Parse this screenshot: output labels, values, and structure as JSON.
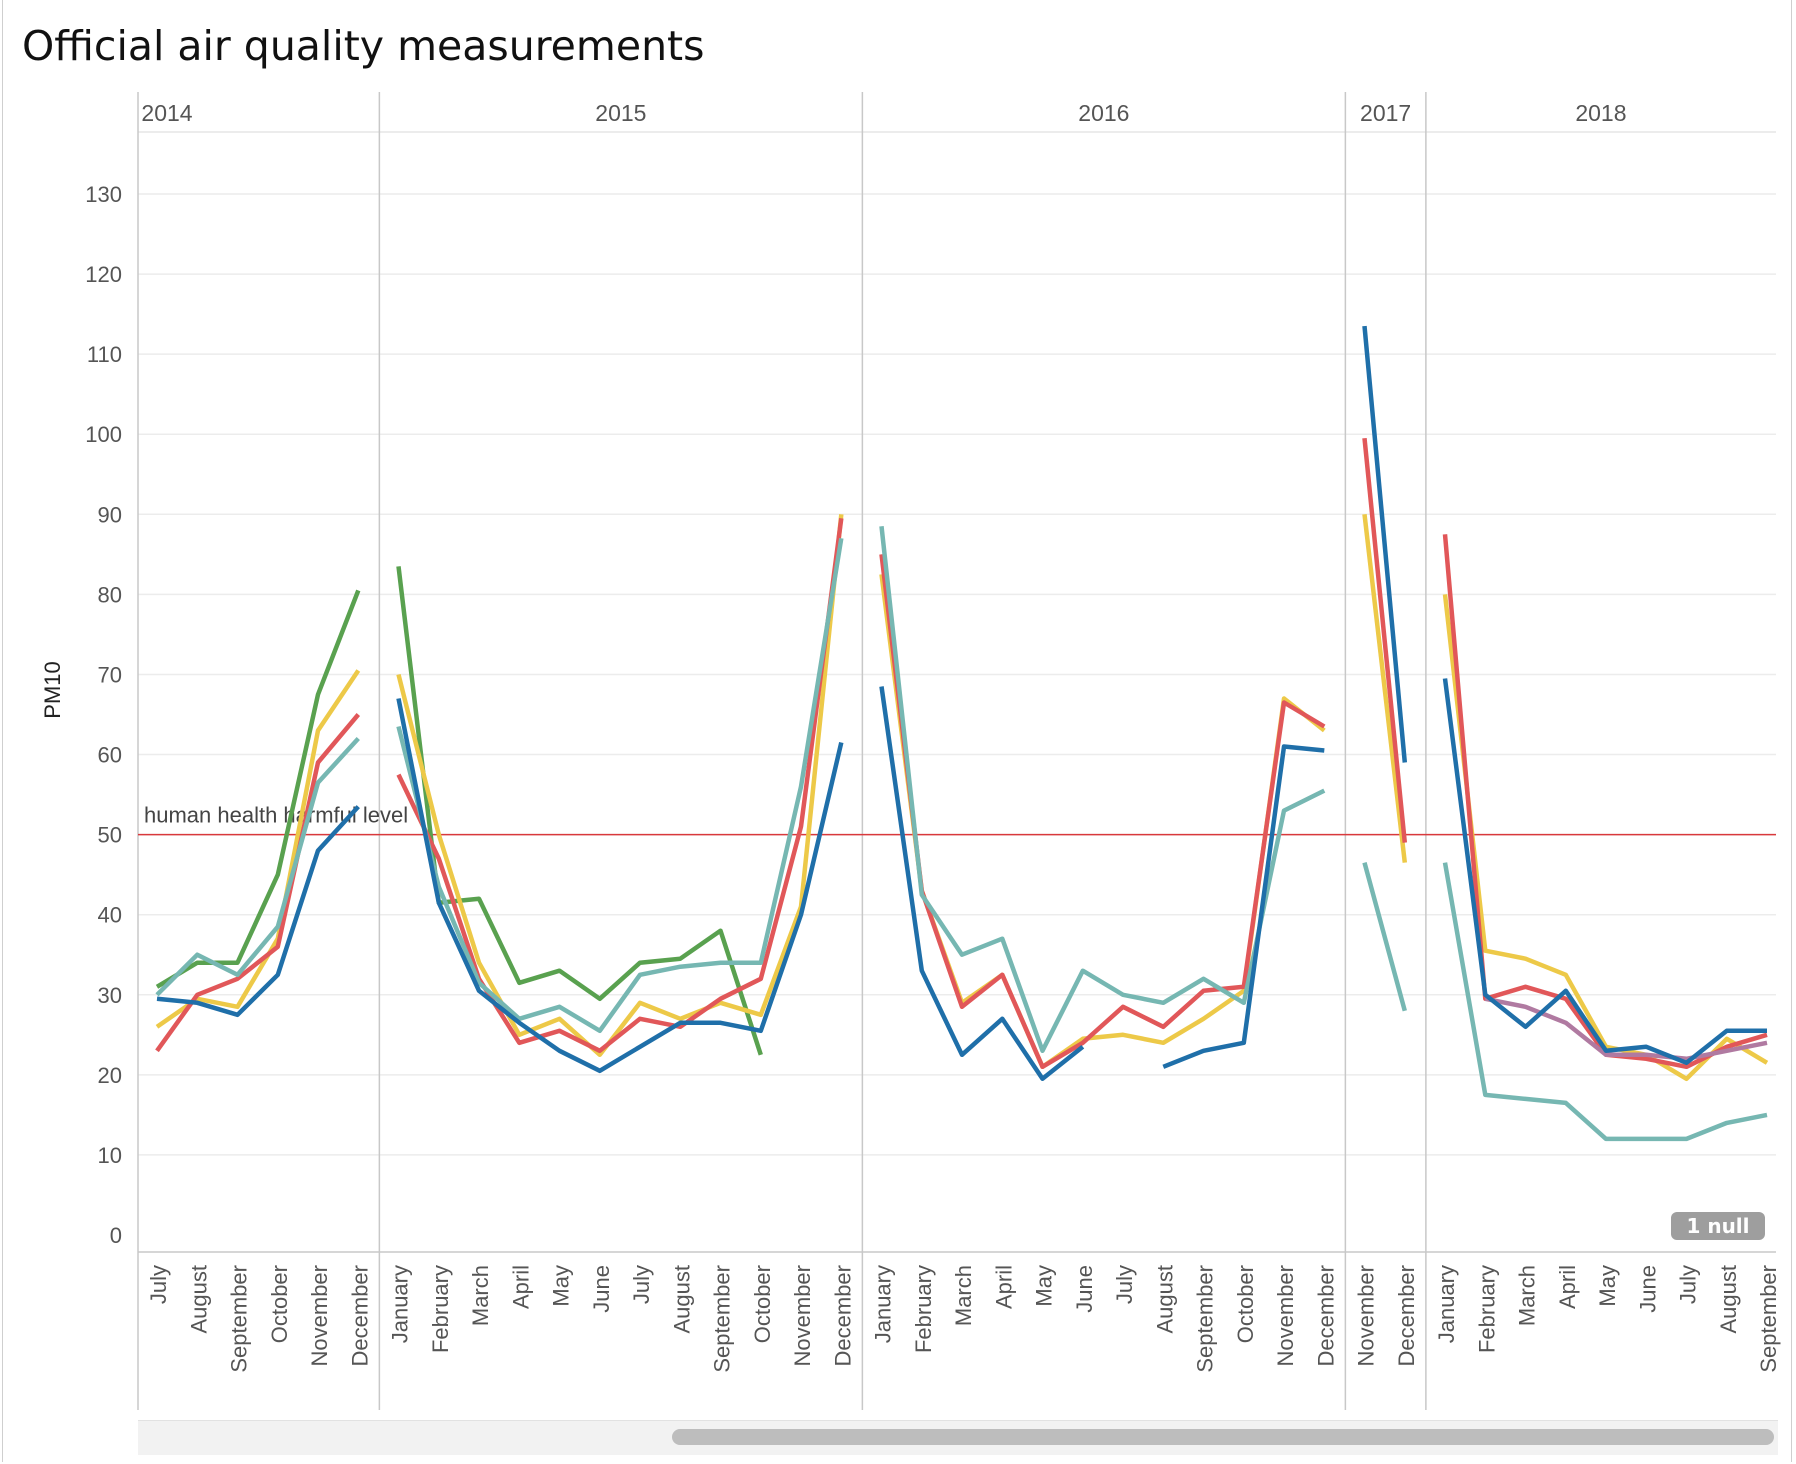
{
  "title": "Official air quality measurements",
  "null_badge": "1 null",
  "chart_data": {
    "type": "line",
    "title": "Official air quality measurements",
    "ylabel": "PM10",
    "xlabel": "",
    "ylim": [
      0,
      135
    ],
    "yticks": [
      0,
      10,
      20,
      30,
      40,
      50,
      60,
      70,
      80,
      90,
      100,
      110,
      120,
      130
    ],
    "grid": true,
    "reference_line": {
      "value": 50,
      "label": "human health harmful level",
      "color": "#d9393c"
    },
    "years": [
      {
        "year": "2014",
        "months": [
          "July",
          "August",
          "September",
          "October",
          "November",
          "December"
        ]
      },
      {
        "year": "2015",
        "months": [
          "January",
          "February",
          "March",
          "April",
          "May",
          "June",
          "July",
          "August",
          "September",
          "October",
          "November",
          "December"
        ]
      },
      {
        "year": "2016",
        "months": [
          "January",
          "February",
          "March",
          "April",
          "May",
          "June",
          "July",
          "August",
          "September",
          "October",
          "November",
          "December"
        ]
      },
      {
        "year": "2017",
        "months": [
          "November",
          "December"
        ]
      },
      {
        "year": "2018",
        "months": [
          "January",
          "February",
          "March",
          "April",
          "May",
          "June",
          "July",
          "August",
          "September"
        ]
      }
    ],
    "series": [
      {
        "color": "#59a14f",
        "values": [
          31,
          34,
          34,
          45,
          67.5,
          80.5,
          83.5,
          41.5,
          42,
          31.5,
          33,
          29.5,
          34,
          34.5,
          38,
          22.5,
          null,
          null,
          null,
          null,
          null,
          null,
          null,
          null,
          null,
          null,
          null,
          null,
          null,
          null,
          null,
          null,
          null,
          null,
          null,
          null,
          null,
          null,
          null,
          null,
          null
        ]
      },
      {
        "color": "#edc948",
        "values": [
          26,
          29.5,
          28.5,
          37,
          63,
          70.5,
          70,
          50,
          34,
          25,
          27,
          22.5,
          29,
          27,
          29,
          27.5,
          41,
          90,
          82.5,
          43,
          29,
          32.5,
          21,
          24.5,
          25,
          24,
          27,
          30.5,
          67,
          63,
          90,
          46.5,
          80,
          35.5,
          34.5,
          32.5,
          23.5,
          22.5,
          19.5,
          24.5,
          21.5
        ]
      },
      {
        "color": "#e15759",
        "values": [
          23,
          30,
          32,
          36,
          59,
          65,
          57.5,
          47,
          32,
          24,
          25.5,
          23,
          27,
          26,
          29.5,
          32,
          51,
          89.5,
          85,
          43,
          28.5,
          32.5,
          21,
          24,
          28.5,
          26,
          30.5,
          31,
          66.5,
          63.5,
          99.5,
          49,
          87.5,
          29.5,
          31,
          29.5,
          22.5,
          22,
          21,
          23.5,
          25
        ]
      },
      {
        "color": "#76b7b2",
        "values": [
          30,
          35,
          32.5,
          38.5,
          56.5,
          62,
          63.5,
          43.5,
          31.5,
          27,
          28.5,
          25.5,
          32.5,
          33.5,
          34,
          34,
          56,
          87,
          88.5,
          42.5,
          35,
          37,
          23,
          33,
          30,
          29,
          32,
          29,
          53,
          55.5,
          46.5,
          28,
          46.5,
          17.5,
          17,
          16.5,
          12,
          12,
          12,
          14,
          15
        ]
      },
      {
        "color": "#b07aa1",
        "values": [
          null,
          null,
          null,
          null,
          null,
          null,
          null,
          null,
          null,
          null,
          null,
          null,
          null,
          null,
          null,
          null,
          null,
          null,
          null,
          null,
          null,
          null,
          null,
          null,
          null,
          null,
          null,
          null,
          null,
          null,
          null,
          null,
          null,
          29.5,
          28.5,
          26.5,
          22.5,
          22.5,
          22,
          23,
          24
        ]
      },
      {
        "color": "#1f6fa9",
        "values": [
          29.5,
          29,
          27.5,
          32.5,
          48,
          53.5,
          67,
          41.5,
          30.5,
          26.5,
          23,
          20.5,
          23.5,
          26.5,
          26.5,
          25.5,
          40,
          61.5,
          68.5,
          33,
          22.5,
          27,
          19.5,
          23.5,
          null,
          21,
          23,
          24,
          61,
          60.5,
          113.5,
          59,
          69.5,
          30,
          26,
          30.5,
          23,
          23.5,
          21.5,
          25.5,
          25.5
        ]
      }
    ]
  }
}
